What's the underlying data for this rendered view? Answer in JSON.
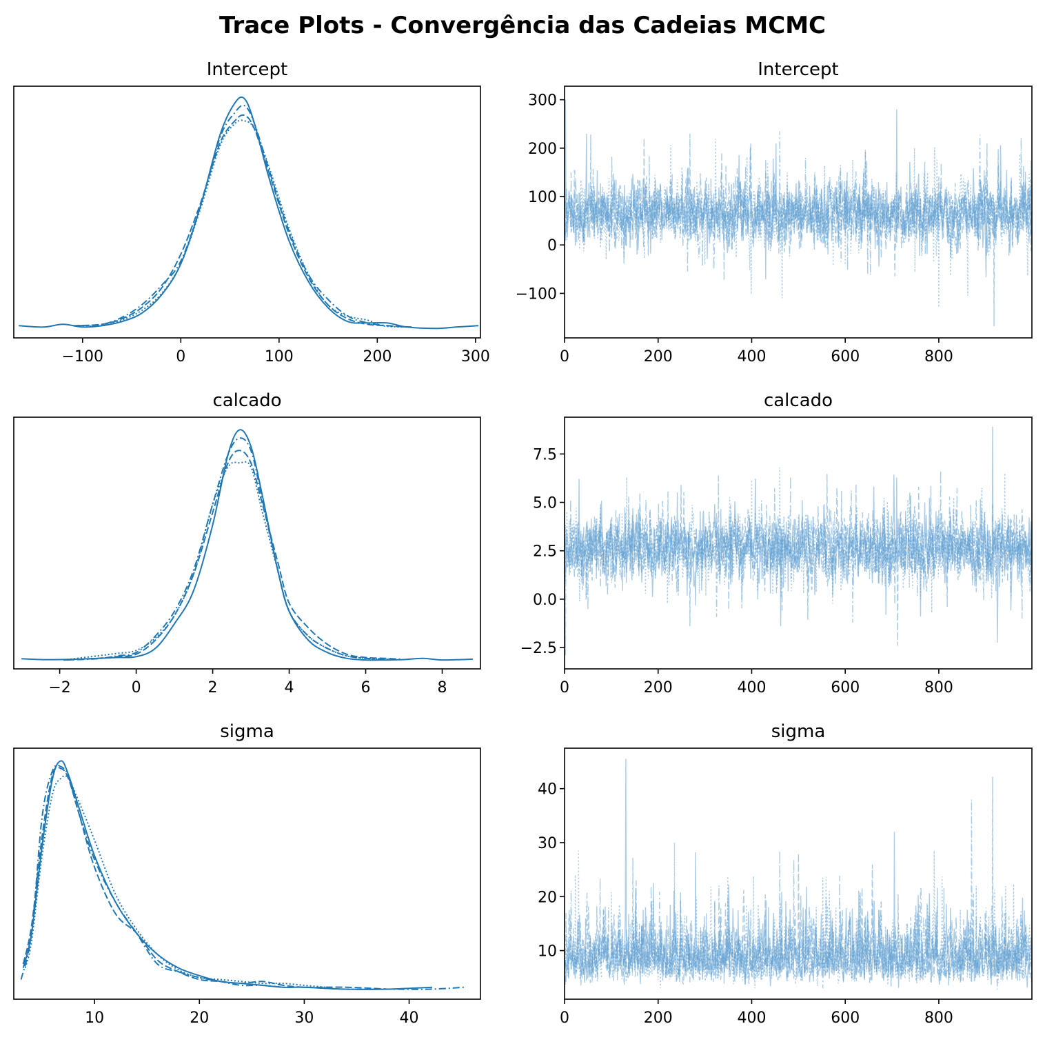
{
  "figure": {
    "suptitle": "Trace Plots - Convergência das Cadeias MCMC"
  },
  "style": {
    "line_color": "#1f77b4",
    "trace_color": "#5a9bd0",
    "chain_linestyles": [
      "solid",
      "dashed",
      "dashdot",
      "dotted"
    ]
  },
  "chart_data": [
    {
      "type": "line",
      "kind": "density",
      "title": "Intercept",
      "xlabel": "",
      "ylabel": "",
      "xlim": [
        -170,
        305
      ],
      "xticks": [
        -100,
        0,
        100,
        200,
        300
      ],
      "xtick_labels": [
        "−100",
        "0",
        "100",
        "200",
        "300"
      ],
      "yticks_visible": false,
      "series": [
        {
          "linestyle": "solid",
          "x": [
            -165,
            -140,
            -120,
            -100,
            -80,
            -60,
            -40,
            -20,
            0,
            20,
            40,
            55,
            65,
            75,
            90,
            110,
            130,
            150,
            170,
            190,
            210,
            230,
            260,
            280,
            303
          ],
          "y": [
            0.0003,
            0.0002,
            0.0004,
            0.0002,
            0.0003,
            0.0006,
            0.0012,
            0.0025,
            0.0048,
            0.009,
            0.0142,
            0.0165,
            0.0168,
            0.015,
            0.011,
            0.0065,
            0.0035,
            0.0016,
            0.0006,
            0.0005,
            0.0005,
            0.0002,
            0.0001,
            0.0002,
            0.0003
          ]
        },
        {
          "linestyle": "dashed",
          "x": [
            -110,
            -80,
            -60,
            -40,
            -20,
            0,
            20,
            40,
            55,
            65,
            75,
            90,
            110,
            130,
            150,
            170,
            190,
            210,
            235
          ],
          "y": [
            0.0003,
            0.0004,
            0.0008,
            0.0016,
            0.003,
            0.0055,
            0.0092,
            0.0136,
            0.0152,
            0.0156,
            0.0146,
            0.0114,
            0.007,
            0.0038,
            0.0018,
            0.0008,
            0.0004,
            0.0003,
            0.0002
          ]
        },
        {
          "linestyle": "dashdot",
          "x": [
            -105,
            -80,
            -60,
            -40,
            -20,
            0,
            20,
            40,
            55,
            65,
            75,
            90,
            110,
            130,
            150,
            170,
            190,
            210,
            230
          ],
          "y": [
            0.0003,
            0.0004,
            0.0009,
            0.0018,
            0.0032,
            0.005,
            0.009,
            0.014,
            0.0158,
            0.0163,
            0.015,
            0.0116,
            0.0072,
            0.004,
            0.0022,
            0.001,
            0.0005,
            0.0003,
            0.0002
          ]
        },
        {
          "linestyle": "dotted",
          "x": [
            -100,
            -80,
            -60,
            -40,
            -20,
            0,
            20,
            40,
            55,
            65,
            75,
            90,
            110,
            130,
            150,
            170,
            190,
            205,
            225
          ],
          "y": [
            0.0003,
            0.0003,
            0.0007,
            0.0014,
            0.0026,
            0.0048,
            0.0088,
            0.0134,
            0.015,
            0.0152,
            0.0146,
            0.0118,
            0.0074,
            0.004,
            0.0018,
            0.001,
            0.0007,
            0.0003,
            0.0002
          ]
        }
      ]
    },
    {
      "type": "line",
      "kind": "trace",
      "title": "Intercept",
      "xlabel": "",
      "ylabel": "",
      "xlim": [
        0,
        999
      ],
      "ylim": [
        -192,
        328
      ],
      "xticks": [
        0,
        200,
        400,
        600,
        800
      ],
      "xtick_labels": [
        "0",
        "200",
        "400",
        "600",
        "800"
      ],
      "yticks": [
        -100,
        0,
        100,
        200,
        300
      ],
      "ytick_labels": [
        "−100",
        "0",
        "100",
        "200",
        "300"
      ],
      "draws_per_chain": 1000,
      "chains": 4,
      "center": 65,
      "spread": 33,
      "spikes": [
        {
          "x": 710,
          "y": 280
        },
        {
          "x": 918,
          "y": -168
        },
        {
          "x": 460,
          "y": 235
        },
        {
          "x": 465,
          "y": -110
        },
        {
          "x": 2,
          "y": 300
        },
        {
          "x": 268,
          "y": 230
        },
        {
          "x": 976,
          "y": 222
        },
        {
          "x": 862,
          "y": -105
        }
      ]
    },
    {
      "type": "line",
      "kind": "density",
      "title": "calcado",
      "xlabel": "",
      "ylabel": "",
      "xlim": [
        -3.2,
        9.0
      ],
      "xticks": [
        -2,
        0,
        2,
        4,
        6,
        8
      ],
      "xtick_labels": [
        "−2",
        "0",
        "2",
        "4",
        "6",
        "8"
      ],
      "yticks_visible": false,
      "series": [
        {
          "linestyle": "solid",
          "x": [
            -3.0,
            -2.5,
            -2.0,
            -1.5,
            -1.0,
            -0.5,
            0.0,
            0.5,
            1.0,
            1.5,
            2.0,
            2.4,
            2.7,
            3.0,
            3.3,
            3.7,
            4.0,
            4.5,
            5.0,
            5.5,
            6.0,
            6.5,
            7.0,
            7.5,
            8.0,
            8.8
          ],
          "y": [
            0.005,
            0.003,
            0.003,
            0.004,
            0.006,
            0.008,
            0.01,
            0.03,
            0.09,
            0.17,
            0.33,
            0.5,
            0.56,
            0.52,
            0.4,
            0.22,
            0.12,
            0.05,
            0.02,
            0.006,
            0.002,
            0.002,
            0.003,
            0.006,
            0.002,
            0.004
          ]
        },
        {
          "linestyle": "dashed",
          "x": [
            -1.8,
            -1.0,
            -0.5,
            0.0,
            0.5,
            1.0,
            1.5,
            2.0,
            2.4,
            2.7,
            3.0,
            3.3,
            3.7,
            4.0,
            4.5,
            5.0,
            5.5,
            6.0,
            6.5,
            6.9
          ],
          "y": [
            0.002,
            0.006,
            0.01,
            0.016,
            0.05,
            0.11,
            0.21,
            0.36,
            0.48,
            0.51,
            0.48,
            0.38,
            0.24,
            0.14,
            0.08,
            0.04,
            0.016,
            0.008,
            0.006,
            0.004
          ]
        },
        {
          "linestyle": "dashdot",
          "x": [
            -1.9,
            -1.0,
            -0.5,
            0.0,
            0.5,
            1.0,
            1.5,
            2.0,
            2.4,
            2.7,
            3.0,
            3.3,
            3.7,
            4.0,
            4.5,
            5.0,
            5.5,
            6.0,
            6.6
          ],
          "y": [
            0.002,
            0.005,
            0.012,
            0.02,
            0.06,
            0.12,
            0.22,
            0.38,
            0.5,
            0.54,
            0.51,
            0.39,
            0.22,
            0.12,
            0.06,
            0.03,
            0.012,
            0.006,
            0.004
          ]
        },
        {
          "linestyle": "dotted",
          "x": [
            -1.9,
            -1.0,
            -0.5,
            0.0,
            0.5,
            1.0,
            1.5,
            2.0,
            2.4,
            2.7,
            3.0,
            3.3,
            3.7,
            4.0,
            4.5,
            5.0,
            5.5,
            6.0,
            6.5
          ],
          "y": [
            0.002,
            0.012,
            0.018,
            0.025,
            0.055,
            0.11,
            0.21,
            0.38,
            0.47,
            0.48,
            0.47,
            0.36,
            0.22,
            0.12,
            0.06,
            0.03,
            0.012,
            0.006,
            0.003
          ]
        }
      ]
    },
    {
      "type": "line",
      "kind": "trace",
      "title": "calcado",
      "xlabel": "",
      "ylabel": "",
      "xlim": [
        0,
        999
      ],
      "ylim": [
        -3.6,
        9.4
      ],
      "xticks": [
        0,
        200,
        400,
        600,
        800
      ],
      "xtick_labels": [
        "0",
        "200",
        "400",
        "600",
        "800"
      ],
      "yticks": [
        -2.5,
        0.0,
        2.5,
        5.0,
        7.5
      ],
      "ytick_labels": [
        "−2.5",
        "0.0",
        "2.5",
        "5.0",
        "7.5"
      ],
      "draws_per_chain": 1000,
      "chains": 4,
      "center": 2.65,
      "spread": 0.82,
      "spikes": [
        {
          "x": 915,
          "y": 8.9
        },
        {
          "x": 712,
          "y": -2.4
        },
        {
          "x": 2,
          "y": -2.9
        },
        {
          "x": 460,
          "y": 6.8
        },
        {
          "x": 462,
          "y": -1.4
        },
        {
          "x": 268,
          "y": -1.4
        },
        {
          "x": 978,
          "y": -1.0
        },
        {
          "x": 133,
          "y": 6.3
        }
      ]
    },
    {
      "type": "line",
      "kind": "density",
      "title": "sigma",
      "xlabel": "",
      "ylabel": "",
      "xlim": [
        2.3,
        46.8
      ],
      "xticks": [
        10,
        20,
        30,
        40
      ],
      "xtick_labels": [
        "10",
        "20",
        "30",
        "40"
      ],
      "yticks_visible": false,
      "series": [
        {
          "linestyle": "solid",
          "x": [
            3.2,
            4.0,
            5.0,
            6.0,
            6.8,
            7.5,
            8.5,
            10.0,
            12.0,
            14.0,
            16.0,
            18.0,
            20.0,
            22.0,
            24.0,
            26.0,
            28.0,
            30.0,
            34.0,
            38.0,
            42.2
          ],
          "y": [
            0.012,
            0.03,
            0.075,
            0.11,
            0.119,
            0.112,
            0.095,
            0.07,
            0.046,
            0.03,
            0.019,
            0.012,
            0.008,
            0.005,
            0.004,
            0.003,
            0.002,
            0.002,
            0.001,
            0.001,
            0.002
          ]
        },
        {
          "linestyle": "dashed",
          "x": [
            3.2,
            4.0,
            5.0,
            6.0,
            6.8,
            7.5,
            8.5,
            10.0,
            12.0,
            14.0,
            16.0,
            18.0,
            20.0,
            22.0,
            24.0,
            26.0,
            28.0,
            30.0,
            34.0,
            38.0
          ],
          "y": [
            0.014,
            0.034,
            0.08,
            0.112,
            0.115,
            0.11,
            0.092,
            0.064,
            0.04,
            0.03,
            0.016,
            0.01,
            0.006,
            0.005,
            0.004,
            0.005,
            0.003,
            0.002,
            0.002,
            0.001
          ]
        },
        {
          "linestyle": "dashdot",
          "x": [
            3.0,
            4.0,
            5.0,
            6.0,
            6.8,
            7.5,
            8.5,
            10.0,
            12.0,
            14.0,
            16.0,
            18.0,
            20.0,
            22.0,
            24.0,
            26.0,
            28.0,
            30.0,
            34.0,
            38.0,
            42.0,
            45.3
          ],
          "y": [
            0.006,
            0.03,
            0.09,
            0.114,
            0.116,
            0.111,
            0.092,
            0.068,
            0.046,
            0.03,
            0.014,
            0.01,
            0.007,
            0.005,
            0.003,
            0.003,
            0.002,
            0.002,
            0.001,
            0.001,
            0.001,
            0.002
          ]
        },
        {
          "linestyle": "dotted",
          "x": [
            3.4,
            4.0,
            5.0,
            6.0,
            6.8,
            7.5,
            8.5,
            10.0,
            12.0,
            14.0,
            16.0,
            18.0,
            20.0,
            22.0,
            24.0,
            26.0,
            28.0,
            30.0,
            32.0
          ],
          "y": [
            0.012,
            0.026,
            0.07,
            0.102,
            0.11,
            0.11,
            0.098,
            0.078,
            0.05,
            0.032,
            0.019,
            0.011,
            0.007,
            0.006,
            0.005,
            0.004,
            0.004,
            0.003,
            0.002
          ]
        }
      ]
    },
    {
      "type": "line",
      "kind": "trace",
      "title": "sigma",
      "xlabel": "",
      "ylabel": "",
      "xlim": [
        0,
        999
      ],
      "ylim": [
        1.0,
        47.5
      ],
      "xticks": [
        0,
        200,
        400,
        600,
        800
      ],
      "xtick_labels": [
        "0",
        "200",
        "400",
        "600",
        "800"
      ],
      "yticks": [
        10,
        20,
        30,
        40
      ],
      "ytick_labels": [
        "10",
        "20",
        "30",
        "40"
      ],
      "draws_per_chain": 1000,
      "chains": 4,
      "center": 8.5,
      "spread": 3.2,
      "skewed": true,
      "spikes": [
        {
          "x": 131,
          "y": 45.5
        },
        {
          "x": 915,
          "y": 42.2
        },
        {
          "x": 870,
          "y": 38.0
        },
        {
          "x": 235,
          "y": 30.0
        },
        {
          "x": 705,
          "y": 32.0
        },
        {
          "x": 500,
          "y": 28.0
        },
        {
          "x": 460,
          "y": 28.5
        },
        {
          "x": 30,
          "y": 28.5
        },
        {
          "x": 280,
          "y": 28.2
        }
      ]
    }
  ]
}
